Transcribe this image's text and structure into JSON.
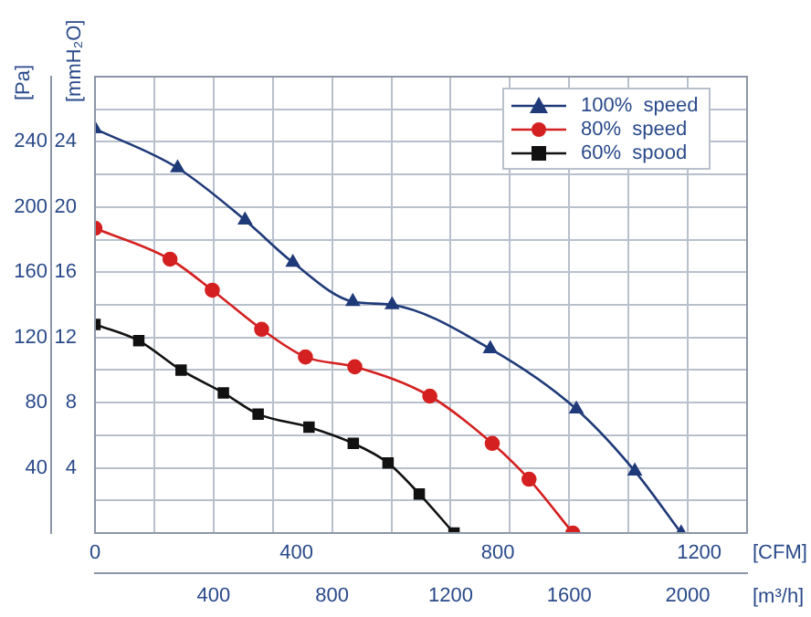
{
  "chart_data": {
    "type": "line",
    "xlabel": "[CFM]",
    "x2label": "[m³/h]",
    "ylabel": "[Pa]",
    "y2label": "[mmH₂O]",
    "xlim": [
      0,
      1295
    ],
    "xticks": [
      0,
      400,
      800,
      1200
    ],
    "x2lim": [
      0,
      2200
    ],
    "x2ticks": [
      {
        "value": 200,
        "label": null
      },
      400,
      {
        "value": 600,
        "label": null
      },
      800,
      {
        "value": 1000,
        "label": null
      },
      1200,
      {
        "value": 1400,
        "label": null
      },
      1600,
      {
        "value": 1800,
        "label": null
      },
      2000
    ],
    "ylim": [
      0,
      280
    ],
    "yticks": [
      {
        "value": 20,
        "label": null
      },
      40,
      {
        "value": 60,
        "label": null
      },
      80,
      {
        "value": 100,
        "label": null
      },
      120,
      {
        "value": 140,
        "label": null
      },
      160,
      {
        "value": 180,
        "label": null
      },
      200,
      {
        "value": 220,
        "label": null
      },
      240,
      {
        "value": 260,
        "label": null
      }
    ],
    "y2lim": [
      0,
      28
    ],
    "y2ticks": [
      4,
      8,
      12,
      16,
      20,
      24
    ],
    "grid": true,
    "legend": "top right",
    "series": [
      {
        "name": "100%  speed",
        "color": "#1f3a78",
        "marker": "triangle",
        "x": [
          0,
          164,
          298,
          393,
          512,
          590,
          785,
          956,
          1072,
          1164
        ],
        "values": [
          248,
          224,
          192,
          166,
          142,
          140,
          113,
          76,
          38,
          0
        ]
      },
      {
        "name": "80%  speed",
        "color": "#d42020",
        "marker": "circle",
        "x": [
          0,
          149,
          233,
          331,
          418,
          516,
          665,
          789,
          862,
          949
        ],
        "values": [
          187,
          168,
          149,
          125,
          108,
          102,
          84,
          55,
          33,
          0
        ]
      },
      {
        "name": "60%  spood",
        "color": "#111111",
        "marker": "square",
        "x": [
          0,
          87,
          171,
          255,
          324,
          425,
          513,
          582,
          644,
          713
        ],
        "values": [
          128,
          118,
          100,
          86,
          73,
          65,
          55,
          43,
          24,
          0
        ]
      }
    ]
  }
}
